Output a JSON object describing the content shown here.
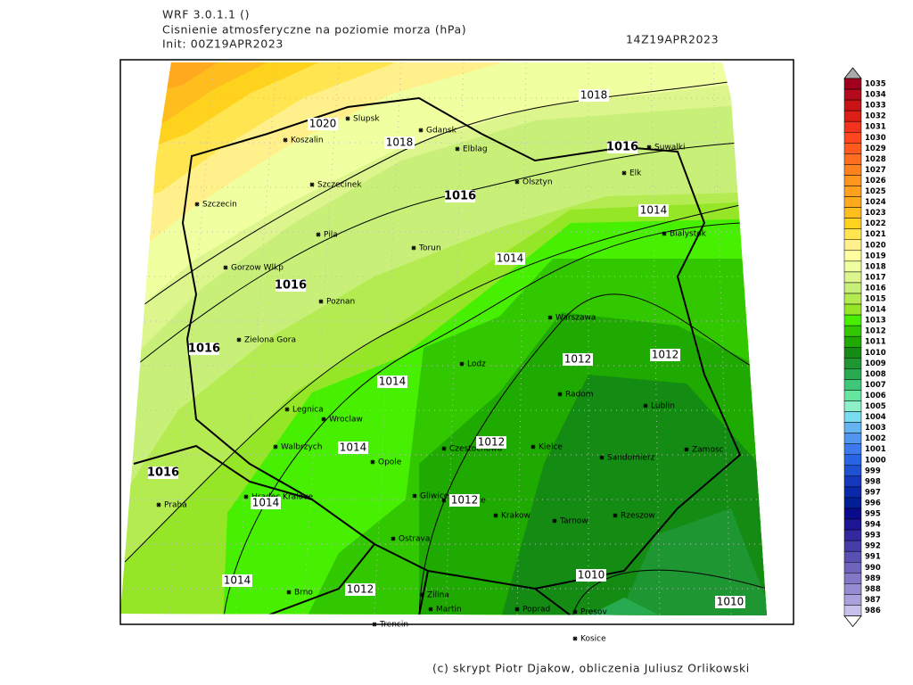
{
  "header": {
    "model": "WRF 3.0.1.1 ()",
    "field": "Cisnienie atmosferyczne na poziomie morza (hPa)",
    "init": "Init: 00Z19APR2023",
    "valid": "14Z19APR2023"
  },
  "cities": [
    "Slupsk",
    "Gdansk",
    "Koszalin",
    "Elblag",
    "Suwalki",
    "Olsztyn",
    "Elk",
    "Szczecinek",
    "Szczecin",
    "Bialystok",
    "Pila",
    "Torun",
    "Gorzow Wlkp",
    "Poznan",
    "Warszawa",
    "Zielona Gora",
    "Lodz",
    "Radom",
    "Lublin",
    "Legnica",
    "Wroclaw",
    "Czestochowa",
    "Kielce",
    "Walbrzych",
    "Opole",
    "Zamosc",
    "Sandomierz",
    "Praha",
    "Hradec Kralove",
    "Gliwice",
    "Katowice",
    "Krakow",
    "Tarnow",
    "Rzeszow",
    "Ostrava",
    "Brno",
    "Zilina",
    "Martin",
    "Poprad",
    "Presov",
    "Trencin",
    "Kosice"
  ],
  "isobar_labels": [
    1020,
    1018,
    1018,
    1016,
    1016,
    1014,
    1014,
    1016,
    1016,
    1014,
    1012,
    1012,
    1014,
    1012,
    1016,
    1014,
    1012,
    1014,
    1012,
    1010,
    1010
  ],
  "colorbar": {
    "levels": [
      1035,
      1034,
      1033,
      1032,
      1031,
      1030,
      1029,
      1028,
      1027,
      1026,
      1025,
      1024,
      1023,
      1022,
      1021,
      1020,
      1019,
      1018,
      1017,
      1016,
      1015,
      1014,
      1013,
      1012,
      1011,
      1010,
      1009,
      1008,
      1007,
      1006,
      1005,
      1004,
      1003,
      1002,
      1001,
      1000,
      999,
      998,
      997,
      996,
      995,
      994,
      993,
      992,
      991,
      990,
      989,
      988,
      987,
      986
    ],
    "colors": [
      "#a0001e",
      "#b40a1e",
      "#c81414",
      "#dc1e14",
      "#f0321e",
      "#ff461e",
      "#ff5a1e",
      "#ff6e1e",
      "#ff821e",
      "#ff961e",
      "#ffa01e",
      "#ffaa1e",
      "#ffbe1e",
      "#ffd21e",
      "#ffe650",
      "#fff08c",
      "#ffffa0",
      "#f0ffa0",
      "#dcf58c",
      "#c8f078",
      "#b4eb50",
      "#96e628",
      "#46f000",
      "#32c800",
      "#1eaa00",
      "#148c14",
      "#1e9632",
      "#28aa50",
      "#3cc878",
      "#64e6a0",
      "#8cf0c8",
      "#78dcf0",
      "#64b4f0",
      "#5096f0",
      "#3c78f0",
      "#2864e6",
      "#1e50d2",
      "#1438be",
      "#0a28aa",
      "#001e96",
      "#0a0a8c",
      "#1e1496",
      "#3228a0",
      "#463caa",
      "#5a50b4",
      "#6e64be",
      "#8278c8",
      "#968cd2",
      "#aaa0dc",
      "#c8c0ec"
    ]
  },
  "credit": "(c) skrypt Piotr Djakow, obliczenia Juliusz Orlikowski"
}
